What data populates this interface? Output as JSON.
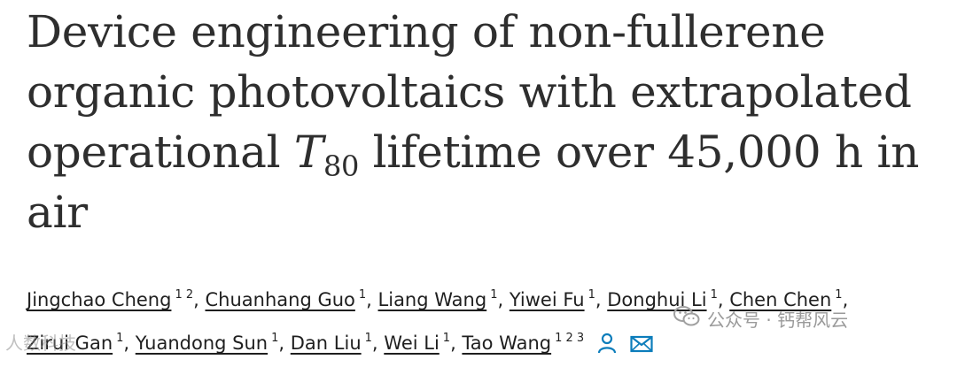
{
  "title": {
    "line_before_t80": "Device engineering of non-fullerene organic photovoltaics with extrapolated operational ",
    "t80_letter": "T",
    "t80_subscript": "80",
    "line_after_t80": " lifetime over 45,000 h in air"
  },
  "authors": [
    {
      "name": "Jingchao Cheng",
      "affiliations": "1 2"
    },
    {
      "name": "Chuanhang Guo",
      "affiliations": "1"
    },
    {
      "name": "Liang Wang",
      "affiliations": "1"
    },
    {
      "name": "Yiwei Fu",
      "affiliations": "1"
    },
    {
      "name": "Donghui Li",
      "affiliations": "1"
    },
    {
      "name": "Chen Chen",
      "affiliations": "1"
    },
    {
      "name": "Zirui Gan",
      "affiliations": "1"
    },
    {
      "name": "Yuandong Sun",
      "affiliations": "1"
    },
    {
      "name": "Dan Liu",
      "affiliations": "1"
    },
    {
      "name": "Wei Li",
      "affiliations": "1"
    },
    {
      "name": "Tao Wang",
      "affiliations": "1 2 3"
    }
  ],
  "icons": {
    "author_profile": "person-icon",
    "corresponding_email": "envelope-icon",
    "watermark_logo": "wechat-icon"
  },
  "watermarks": {
    "right_text": "公众号 · 钙帮风云",
    "left_text": "人数科技"
  },
  "colors": {
    "icon_blue": "#0c7dbb",
    "title_text": "#2e2e2e"
  }
}
